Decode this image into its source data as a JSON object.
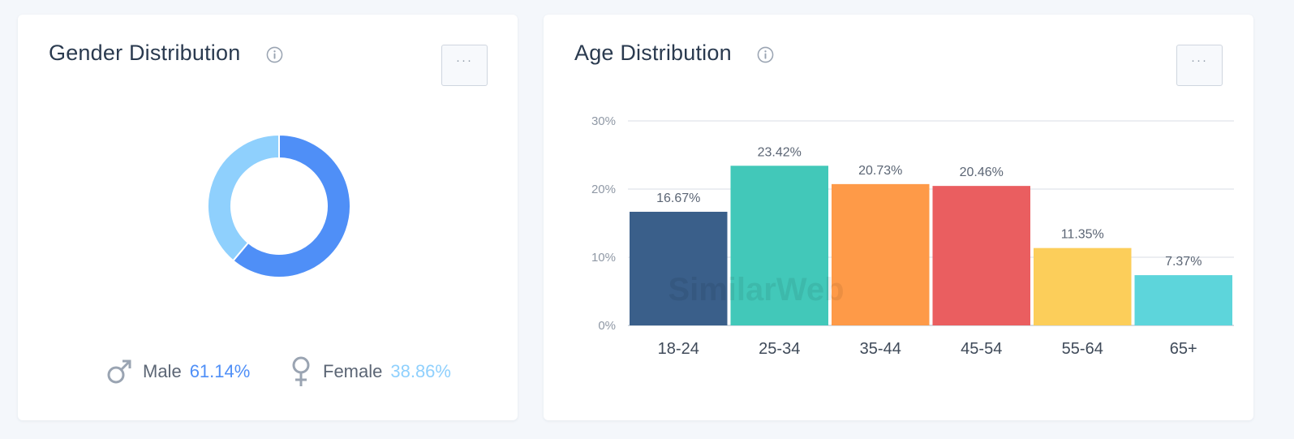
{
  "gender_card": {
    "title": "Gender Distribution",
    "more_label": "···",
    "legend": [
      {
        "label": "Male",
        "value": "61.14%",
        "color": "#4f8ff7",
        "icon": "male-icon"
      },
      {
        "label": "Female",
        "value": "38.86%",
        "color": "#8fd0fd",
        "icon": "female-icon"
      }
    ]
  },
  "age_card": {
    "title": "Age Distribution",
    "more_label": "···"
  },
  "chart_data": [
    {
      "type": "pie",
      "donut": true,
      "title": "Gender Distribution",
      "slices": [
        {
          "label": "Male",
          "value": 61.14,
          "color": "#4f8ff7"
        },
        {
          "label": "Female",
          "value": 38.86,
          "color": "#8fd0fd"
        }
      ]
    },
    {
      "type": "bar",
      "title": "Age Distribution",
      "categories": [
        "18-24",
        "25-34",
        "35-44",
        "45-54",
        "55-64",
        "65+"
      ],
      "values": [
        16.67,
        23.42,
        20.73,
        20.46,
        11.35,
        7.37
      ],
      "value_labels": [
        "16.67%",
        "23.42%",
        "20.73%",
        "20.46%",
        "11.35%",
        "7.37%"
      ],
      "colors": [
        "#3a5f8a",
        "#42c8b9",
        "#fe9a48",
        "#ea5e60",
        "#fcce5a",
        "#5dd5db"
      ],
      "ylim": [
        0,
        30
      ],
      "yticks": [
        0,
        10,
        20,
        30
      ],
      "ytick_labels": [
        "0%",
        "10%",
        "20%",
        "30%"
      ],
      "grid": true,
      "watermark": "SimilarWeb"
    }
  ]
}
